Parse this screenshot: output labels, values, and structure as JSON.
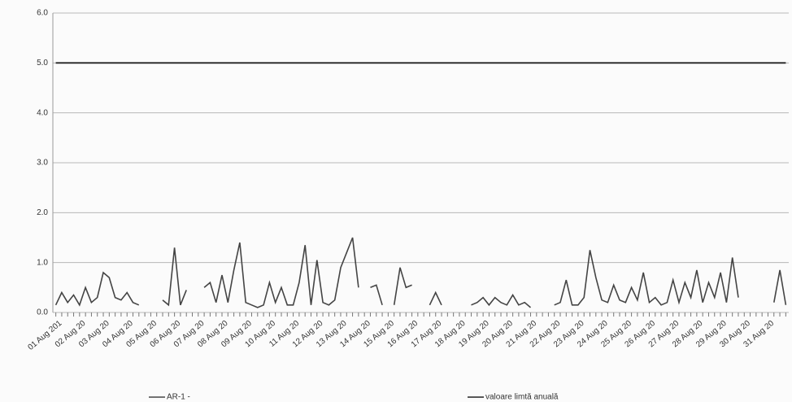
{
  "chart_data": {
    "type": "line",
    "categories": [
      "01 Aug 201",
      null,
      null,
      null,
      "02 Aug 20",
      null,
      null,
      null,
      "03 Aug 20",
      null,
      null,
      null,
      "04 Aug 20",
      null,
      null,
      null,
      "05 Aug 20",
      null,
      null,
      null,
      "06 Aug 20",
      null,
      null,
      null,
      "07 Aug 20",
      null,
      null,
      null,
      "08 Aug 20",
      null,
      null,
      null,
      "09 Aug 20",
      null,
      null,
      null,
      "10 Aug 20",
      null,
      null,
      null,
      "11 Aug 20",
      null,
      null,
      null,
      "12 Aug 20",
      null,
      null,
      null,
      "13 Aug 20",
      null,
      null,
      null,
      "14 Aug 20",
      null,
      null,
      null,
      "15 Aug 20",
      null,
      null,
      null,
      "16 Aug 20",
      null,
      null,
      null,
      "17 Aug 20",
      null,
      null,
      null,
      "18 Aug 20",
      null,
      null,
      null,
      "19 Aug 20",
      null,
      null,
      null,
      "20 Aug 20",
      null,
      null,
      null,
      "21 Aug 20",
      null,
      null,
      null,
      "22 Aug 20",
      null,
      null,
      null,
      "23 Aug 20",
      null,
      null,
      null,
      "24 Aug 20",
      null,
      null,
      null,
      "25 Aug 20",
      null,
      null,
      null,
      "26 Aug 20",
      null,
      null,
      null,
      "27 Aug 20",
      null,
      null,
      null,
      "28 Aug 20",
      null,
      null,
      null,
      "29 Aug 20",
      null,
      null,
      null,
      "30 Aug 20",
      null,
      null,
      null,
      "31 Aug 20",
      null,
      null,
      null
    ],
    "series": [
      {
        "name": "AR-1 -",
        "color": "#444444",
        "values": [
          0.15,
          0.4,
          0.2,
          0.35,
          0.15,
          0.5,
          0.2,
          0.3,
          0.8,
          0.7,
          0.3,
          0.25,
          0.4,
          0.2,
          0.15,
          null,
          null,
          null,
          0.25,
          0.15,
          1.3,
          0.15,
          0.45,
          null,
          null,
          0.5,
          0.6,
          0.2,
          0.75,
          0.2,
          0.85,
          1.4,
          0.2,
          0.15,
          0.1,
          0.15,
          0.6,
          0.2,
          0.5,
          0.15,
          0.15,
          0.6,
          1.35,
          0.15,
          1.05,
          0.2,
          0.15,
          0.25,
          0.9,
          1.2,
          1.5,
          0.5,
          null,
          0.5,
          0.55,
          0.15,
          null,
          0.15,
          0.9,
          0.5,
          0.55,
          null,
          null,
          0.15,
          0.4,
          0.15,
          null,
          0.3,
          null,
          null,
          0.15,
          0.2,
          0.3,
          0.15,
          0.3,
          0.2,
          0.15,
          0.35,
          0.15,
          0.2,
          0.1,
          null,
          0.3,
          null,
          0.15,
          0.2,
          0.65,
          0.15,
          0.15,
          0.3,
          1.25,
          0.7,
          0.25,
          0.2,
          0.55,
          0.25,
          0.2,
          0.5,
          0.25,
          0.8,
          0.2,
          0.3,
          0.15,
          0.2,
          0.65,
          0.2,
          0.6,
          0.3,
          0.85,
          0.2,
          0.6,
          0.3,
          0.8,
          0.2,
          1.1,
          0.3,
          null,
          0.15,
          null,
          0.15,
          null,
          0.2,
          0.85,
          0.15
        ]
      },
      {
        "name": "valoare limtă anuală",
        "color": "#222222",
        "values": [
          5,
          5,
          5,
          5,
          5,
          5,
          5,
          5,
          5,
          5,
          5,
          5,
          5,
          5,
          5,
          5,
          5,
          5,
          5,
          5,
          5,
          5,
          5,
          5,
          5,
          5,
          5,
          5,
          5,
          5,
          5,
          5,
          5,
          5,
          5,
          5,
          5,
          5,
          5,
          5,
          5,
          5,
          5,
          5,
          5,
          5,
          5,
          5,
          5,
          5,
          5,
          5,
          5,
          5,
          5,
          5,
          5,
          5,
          5,
          5,
          5,
          5,
          5,
          5,
          5,
          5,
          5,
          5,
          5,
          5,
          5,
          5,
          5,
          5,
          5,
          5,
          5,
          5,
          5,
          5,
          5,
          5,
          5,
          5,
          5,
          5,
          5,
          5,
          5,
          5,
          5,
          5,
          5,
          5,
          5,
          5,
          5,
          5,
          5,
          5,
          5,
          5,
          5,
          5,
          5,
          5,
          5,
          5,
          5,
          5,
          5,
          5,
          5,
          5,
          5,
          5,
          5,
          5,
          5,
          5,
          5,
          5,
          5,
          5
        ]
      }
    ],
    "ylim": [
      0,
      6
    ],
    "yticks": [
      {
        "value": 0,
        "label": "0.0"
      },
      {
        "value": 1,
        "label": "1.0"
      },
      {
        "value": 2,
        "label": "2.0"
      },
      {
        "value": 3,
        "label": "3.0"
      },
      {
        "value": 4,
        "label": "4.0"
      },
      {
        "value": 5,
        "label": "5.0"
      },
      {
        "value": 6,
        "label": "6.0"
      }
    ],
    "grid": true
  }
}
